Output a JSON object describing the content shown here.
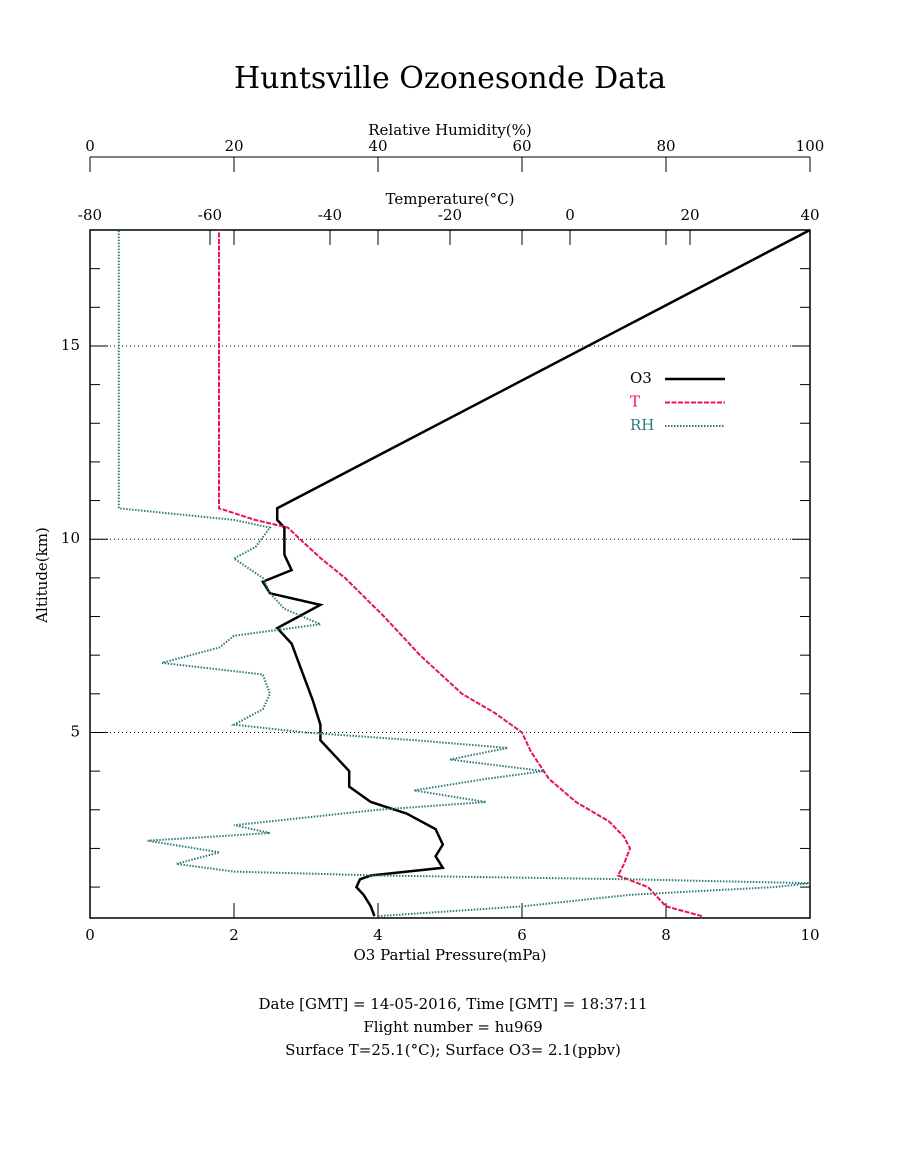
{
  "chart_data": {
    "type": "profile",
    "title": "Huntsville Ozonesonde Data",
    "ylabel": "Altitude(km)",
    "ylim": [
      0.2,
      18
    ],
    "yticks": [
      5,
      10,
      15
    ],
    "yminorticks": [
      1,
      2,
      3,
      4,
      6,
      7,
      8,
      9,
      11,
      12,
      13,
      14,
      16,
      17
    ],
    "grid": true,
    "legend": "upper right",
    "axes": {
      "o3": {
        "label": "O3 Partial Pressure(mPa)",
        "lim": [
          0,
          10
        ],
        "ticks": [
          0,
          2,
          4,
          6,
          8,
          10
        ],
        "position": "bottom"
      },
      "temperature": {
        "label": "Temperature(°C)",
        "lim": [
          -80,
          40
        ],
        "ticks": [
          -80,
          -60,
          -40,
          -20,
          0,
          20,
          40
        ],
        "position": "top"
      },
      "rh": {
        "label": "Relative Humidity(%)",
        "lim": [
          0,
          100
        ],
        "ticks": [
          0,
          20,
          40,
          60,
          80,
          100
        ],
        "position": "outer-top"
      }
    },
    "series": [
      {
        "name": "O3",
        "axis": "o3",
        "color": "#000000",
        "style": "solid",
        "altitude": [
          0.25,
          0.5,
          0.8,
          1.0,
          1.2,
          1.3,
          1.5,
          1.8,
          2.1,
          2.5,
          2.9,
          3.2,
          3.6,
          4.0,
          4.4,
          4.8,
          5.2,
          5.8,
          6.3,
          6.8,
          7.3,
          7.7,
          8.0,
          8.3,
          8.6,
          8.9,
          9.2,
          9.6,
          10.0,
          10.3,
          10.5,
          10.8,
          18.0
        ],
        "values": [
          3.95,
          3.9,
          3.8,
          3.7,
          3.75,
          3.9,
          4.9,
          4.8,
          4.9,
          4.8,
          4.4,
          3.9,
          3.6,
          3.6,
          3.4,
          3.2,
          3.2,
          3.1,
          3.0,
          2.9,
          2.8,
          2.6,
          2.9,
          3.2,
          2.5,
          2.4,
          2.8,
          2.7,
          2.7,
          2.7,
          2.6,
          2.6,
          10.0
        ]
      },
      {
        "name": "T",
        "axis": "temperature",
        "color": "#e8174a",
        "style": "dashed",
        "altitude": [
          0.25,
          0.5,
          1.0,
          1.3,
          1.6,
          2.0,
          2.3,
          2.7,
          3.2,
          3.8,
          4.5,
          5.0,
          5.5,
          6.0,
          7.0,
          8.0,
          9.0,
          9.5,
          10.0,
          10.3,
          10.5,
          10.8,
          18.0
        ],
        "values": [
          22,
          16,
          13,
          8,
          9,
          10,
          9,
          6.5,
          1,
          -3.5,
          -6.5,
          -8,
          -12.5,
          -18,
          -25,
          -31,
          -37.5,
          -41.5,
          -45,
          -47,
          -52.5,
          -58.5,
          -58.5
        ]
      },
      {
        "name": "RH",
        "axis": "rh",
        "color": "#2e7a7a",
        "style": "dotted",
        "altitude": [
          0.25,
          0.5,
          0.8,
          1.0,
          1.1,
          1.2,
          1.3,
          1.4,
          1.6,
          1.9,
          2.2,
          2.4,
          2.6,
          3.0,
          3.2,
          3.5,
          3.8,
          4.0,
          4.3,
          4.6,
          4.8,
          5.0,
          5.2,
          5.6,
          6.0,
          6.5,
          6.8,
          7.2,
          7.5,
          7.8,
          8.2,
          8.6,
          9.0,
          9.5,
          9.8,
          10.3,
          10.5,
          10.8,
          18.0
        ],
        "values": [
          40,
          60,
          75,
          95,
          100,
          75,
          40,
          20,
          12,
          18,
          8,
          25,
          20,
          40,
          55,
          45,
          55,
          63,
          50,
          58,
          45,
          30,
          20,
          24,
          25,
          24,
          10,
          18,
          20,
          32,
          27,
          25,
          24,
          20,
          23,
          25,
          20,
          4,
          4
        ]
      }
    ],
    "notes": [
      "Date [GMT] = 14-05-2016,  Time [GMT] = 18:37:11",
      "Flight number = hu969",
      "Surface T=25.1(°C); Surface O3= 2.1(ppbv)"
    ]
  }
}
